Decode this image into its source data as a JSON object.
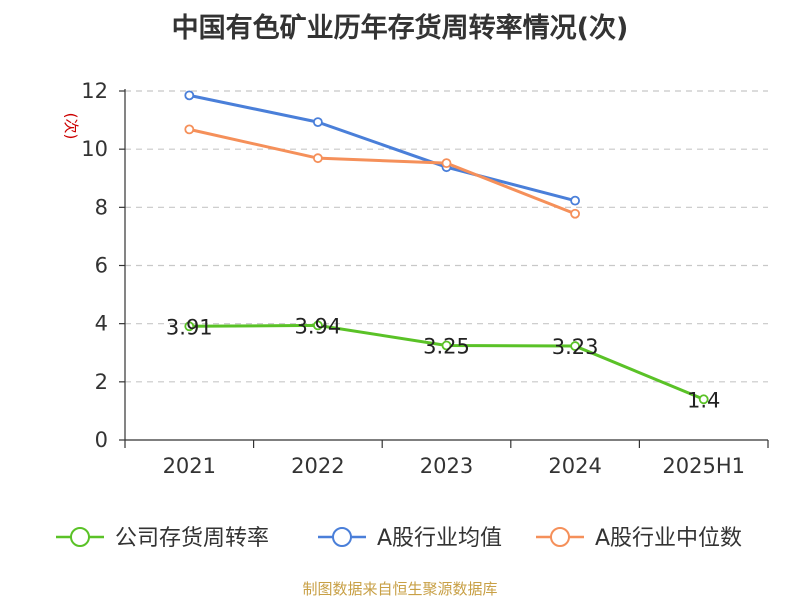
{
  "chart_data": {
    "type": "line",
    "title": "中国有色矿业历年存货周转率情况(次)",
    "ylabel": "(次)",
    "categories": [
      "2021",
      "2022",
      "2023",
      "2024",
      "2025H1"
    ],
    "ylim": [
      0,
      12
    ],
    "yticks": [
      0,
      2,
      4,
      6,
      8,
      10,
      12
    ],
    "grid": true,
    "legend_position": "bottom",
    "series": [
      {
        "name": "公司存货周转率",
        "color": "#5ac227",
        "values": [
          3.91,
          3.94,
          3.25,
          3.23,
          1.4
        ],
        "labels": [
          "3.91",
          "3.94",
          "3.25",
          "3.23",
          "1.4"
        ]
      },
      {
        "name": "A股行业均值",
        "color": "#4a7fd9",
        "values": [
          11.85,
          10.93,
          9.38,
          8.23,
          null
        ]
      },
      {
        "name": "A股行业中位数",
        "color": "#f5905a",
        "values": [
          10.68,
          9.69,
          9.52,
          7.78,
          null
        ]
      }
    ]
  },
  "footer": {
    "text": "制图数据来自恒生聚源数据库",
    "color": "#c8a046"
  },
  "colors": {
    "axis": "#333333",
    "grid": "#c8c8c8",
    "ylabel": "#cc0000"
  }
}
